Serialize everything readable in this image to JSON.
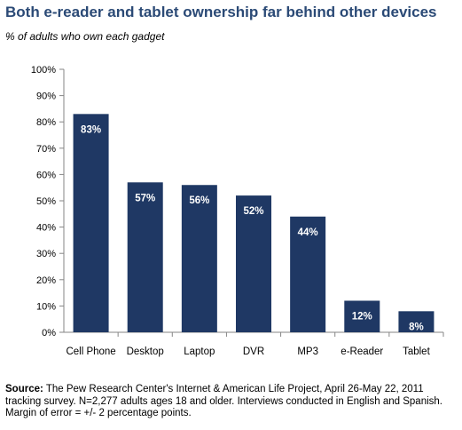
{
  "title": "Both e-reader and tablet ownership far behind other devices",
  "subtitle": "% of adults who own each gadget",
  "source": {
    "label": "Source:",
    "text": "The Pew Research Center's Internet & American Life Project, April 26-May 22, 2011 tracking survey. N=2,277 adults ages 18 and older. Interviews conducted in English and Spanish. Margin of error = +/- 2 percentage points."
  },
  "colors": {
    "bar": "#1f3864",
    "bar_label": "#ffffff",
    "axis": "#868686",
    "text": "#000000"
  },
  "chart_data": {
    "type": "bar",
    "categories": [
      "Cell Phone",
      "Desktop",
      "Laptop",
      "DVR",
      "MP3",
      "e-Reader",
      "Tablet"
    ],
    "values": [
      83,
      57,
      56,
      52,
      44,
      12,
      8
    ],
    "data_labels": [
      "83%",
      "57%",
      "56%",
      "52%",
      "44%",
      "12%",
      "8%"
    ],
    "yticks": [
      "0%",
      "10%",
      "20%",
      "30%",
      "40%",
      "50%",
      "60%",
      "70%",
      "80%",
      "90%",
      "100%"
    ],
    "ylim": [
      0,
      100
    ],
    "grid": false,
    "legend": "none"
  }
}
